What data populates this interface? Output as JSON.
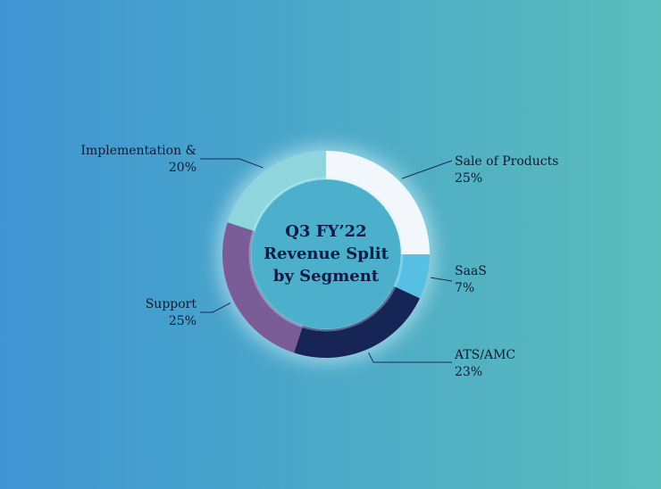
{
  "chart_data": {
    "type": "pie",
    "title": [
      "Q3 FY’22",
      "Revenue Split",
      "by Segment"
    ],
    "segments": [
      {
        "name": "Sale of Products",
        "value": 25,
        "label": "25%",
        "color": "#f2f7fb"
      },
      {
        "name": "SaaS",
        "value": 7,
        "label": "7%",
        "color": "#56bfe3"
      },
      {
        "name": "ATS/AMC",
        "value": 23,
        "label": "23%",
        "color": "#172456"
      },
      {
        "name": "Support",
        "value": 25,
        "label": "25%",
        "color": "#7a5d96"
      },
      {
        "name": "Implementation &",
        "value": 20,
        "label": "20%",
        "color": "#8fd6dc"
      }
    ]
  }
}
